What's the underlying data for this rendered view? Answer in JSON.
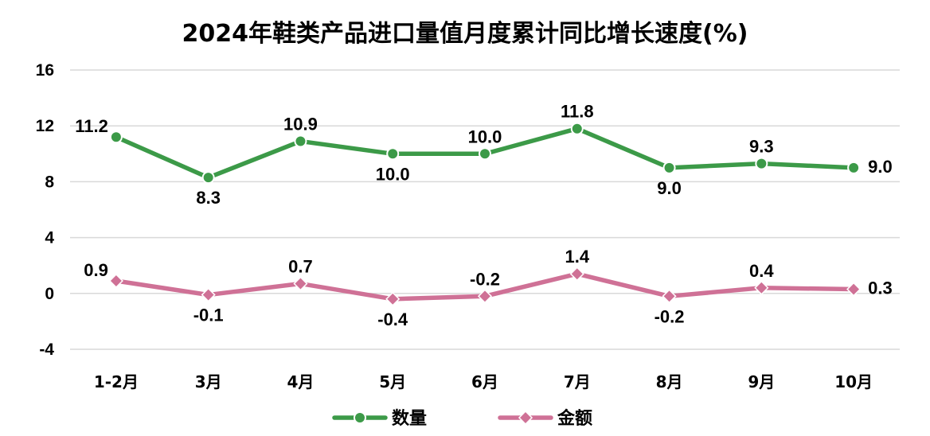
{
  "chart_data": {
    "type": "line",
    "title": "2024年鞋类产品进口量值月度累计同比增长速度(%)",
    "categories": [
      "1-2月",
      "3月",
      "4月",
      "5月",
      "6月",
      "7月",
      "8月",
      "9月",
      "10月"
    ],
    "series": [
      {
        "name": "数量",
        "values": [
          11.2,
          8.3,
          10.9,
          10.0,
          10.0,
          11.8,
          9.0,
          9.3,
          9.0
        ],
        "color": "#3c9a48",
        "marker": "circle"
      },
      {
        "name": "金额",
        "values": [
          0.9,
          -0.1,
          0.7,
          -0.4,
          -0.2,
          1.4,
          -0.2,
          0.4,
          0.3
        ],
        "color": "#cf7196",
        "marker": "diamond"
      }
    ],
    "y_ticks": [
      "16",
      "12",
      "8",
      "4",
      "0",
      "-4"
    ],
    "ylim": [
      -4,
      16
    ],
    "grid": true,
    "legend_position": "bottom",
    "data_labels": [
      [
        "11.2",
        "8.3",
        "10.9",
        "10.0",
        "10.0",
        "11.8",
        "9.0",
        "9.3",
        "9.0"
      ],
      [
        "0.9",
        "-0.1",
        "0.7",
        "-0.4",
        "-0.2",
        "1.4",
        "-0.2",
        "0.4",
        "0.3"
      ]
    ]
  }
}
